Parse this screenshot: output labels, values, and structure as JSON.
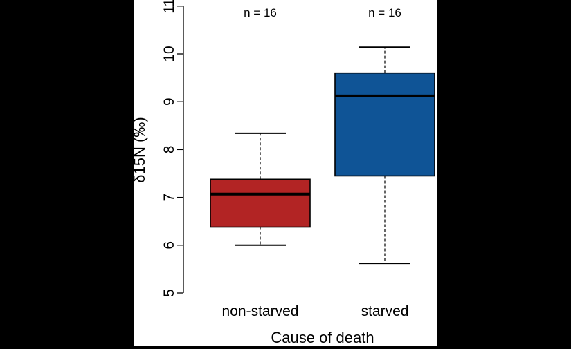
{
  "chart_data": {
    "type": "box",
    "xlabel": "Cause of death",
    "ylabel": "δ15N (‰)",
    "ylim": [
      5,
      11
    ],
    "yticks": [
      5,
      6,
      7,
      8,
      9,
      10,
      11
    ],
    "grid": false,
    "legend": "none",
    "categories": [
      "non-starved",
      "starved"
    ],
    "series": [
      {
        "category": "non-starved",
        "n_label": "n = 16",
        "color": "#B22424",
        "min": 6.0,
        "q1": 6.38,
        "median": 7.07,
        "q3": 7.38,
        "max": 8.34
      },
      {
        "category": "starved",
        "n_label": "n = 16",
        "color": "#0F5496",
        "min": 5.62,
        "q1": 7.45,
        "median": 9.12,
        "q3": 9.6,
        "max": 10.14
      }
    ]
  },
  "colors": {
    "background": "#000000",
    "plot_panel": "#FFFFFF",
    "stroke": "#000000"
  }
}
